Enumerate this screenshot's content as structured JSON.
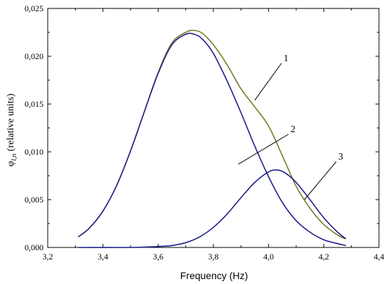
{
  "chart_data": {
    "type": "line",
    "xlabel": "Frequency (Hz)",
    "ylabel": {
      "symbol": "φ",
      "subscript": "l,n",
      "text": " (relative units)"
    },
    "xlim": [
      3.2,
      4.4
    ],
    "ylim": [
      0.0,
      0.025
    ],
    "xticks": [
      "3,2",
      "3,4",
      "3,6",
      "3,8",
      "4,0",
      "4,2",
      "4,4"
    ],
    "yticks": [
      "0,000",
      "0,005",
      "0,010",
      "0,015",
      "0,020",
      "0,025"
    ],
    "grid": false,
    "colors": {
      "component": "#1f1f8a",
      "sum": "#7a7a2a"
    },
    "series": [
      {
        "x": [
          3.31,
          3.35,
          3.4,
          3.45,
          3.5,
          3.55,
          3.6,
          3.65,
          3.7,
          3.73,
          3.76,
          3.8,
          3.85,
          3.9,
          3.95,
          4.0,
          4.05,
          4.1,
          4.15,
          4.2,
          4.25,
          4.28
        ],
        "y": [
          0.0011,
          0.002,
          0.0038,
          0.0065,
          0.0101,
          0.0142,
          0.0182,
          0.0212,
          0.0223,
          0.0223,
          0.0218,
          0.0203,
          0.0174,
          0.0141,
          0.0106,
          0.0074,
          0.0047,
          0.0028,
          0.0016,
          0.0008,
          0.0004,
          0.0002
        ]
      },
      {
        "x": [
          3.31,
          3.5,
          3.6,
          3.65,
          3.7,
          3.75,
          3.8,
          3.85,
          3.9,
          3.95,
          4.0,
          4.03,
          4.06,
          4.1,
          4.15,
          4.2,
          4.25,
          4.28
        ],
        "y": [
          0.0,
          0.0,
          0.0001,
          0.0002,
          0.0005,
          0.0011,
          0.0021,
          0.0035,
          0.0052,
          0.0068,
          0.0079,
          0.0081,
          0.0078,
          0.0068,
          0.005,
          0.0031,
          0.0016,
          0.0009
        ]
      },
      {
        "x": [
          3.31,
          3.35,
          3.4,
          3.45,
          3.5,
          3.55,
          3.6,
          3.65,
          3.7,
          3.73,
          3.76,
          3.8,
          3.85,
          3.9,
          3.95,
          4.0,
          4.05,
          4.1,
          4.15,
          4.2,
          4.25,
          4.28
        ],
        "y": [
          0.0011,
          0.002,
          0.0038,
          0.0065,
          0.0101,
          0.0142,
          0.0183,
          0.0214,
          0.0225,
          0.0227,
          0.0224,
          0.0212,
          0.0191,
          0.0166,
          0.0147,
          0.0127,
          0.0096,
          0.0064,
          0.0041,
          0.0024,
          0.0013,
          0.0009
        ]
      }
    ],
    "annotations": [
      {
        "text": "1",
        "target": [
          3.95,
          0.0154
        ]
      },
      {
        "text": "2",
        "target": [
          3.89,
          0.0087
        ]
      },
      {
        "text": "3",
        "target": [
          4.13,
          0.005
        ]
      }
    ]
  }
}
